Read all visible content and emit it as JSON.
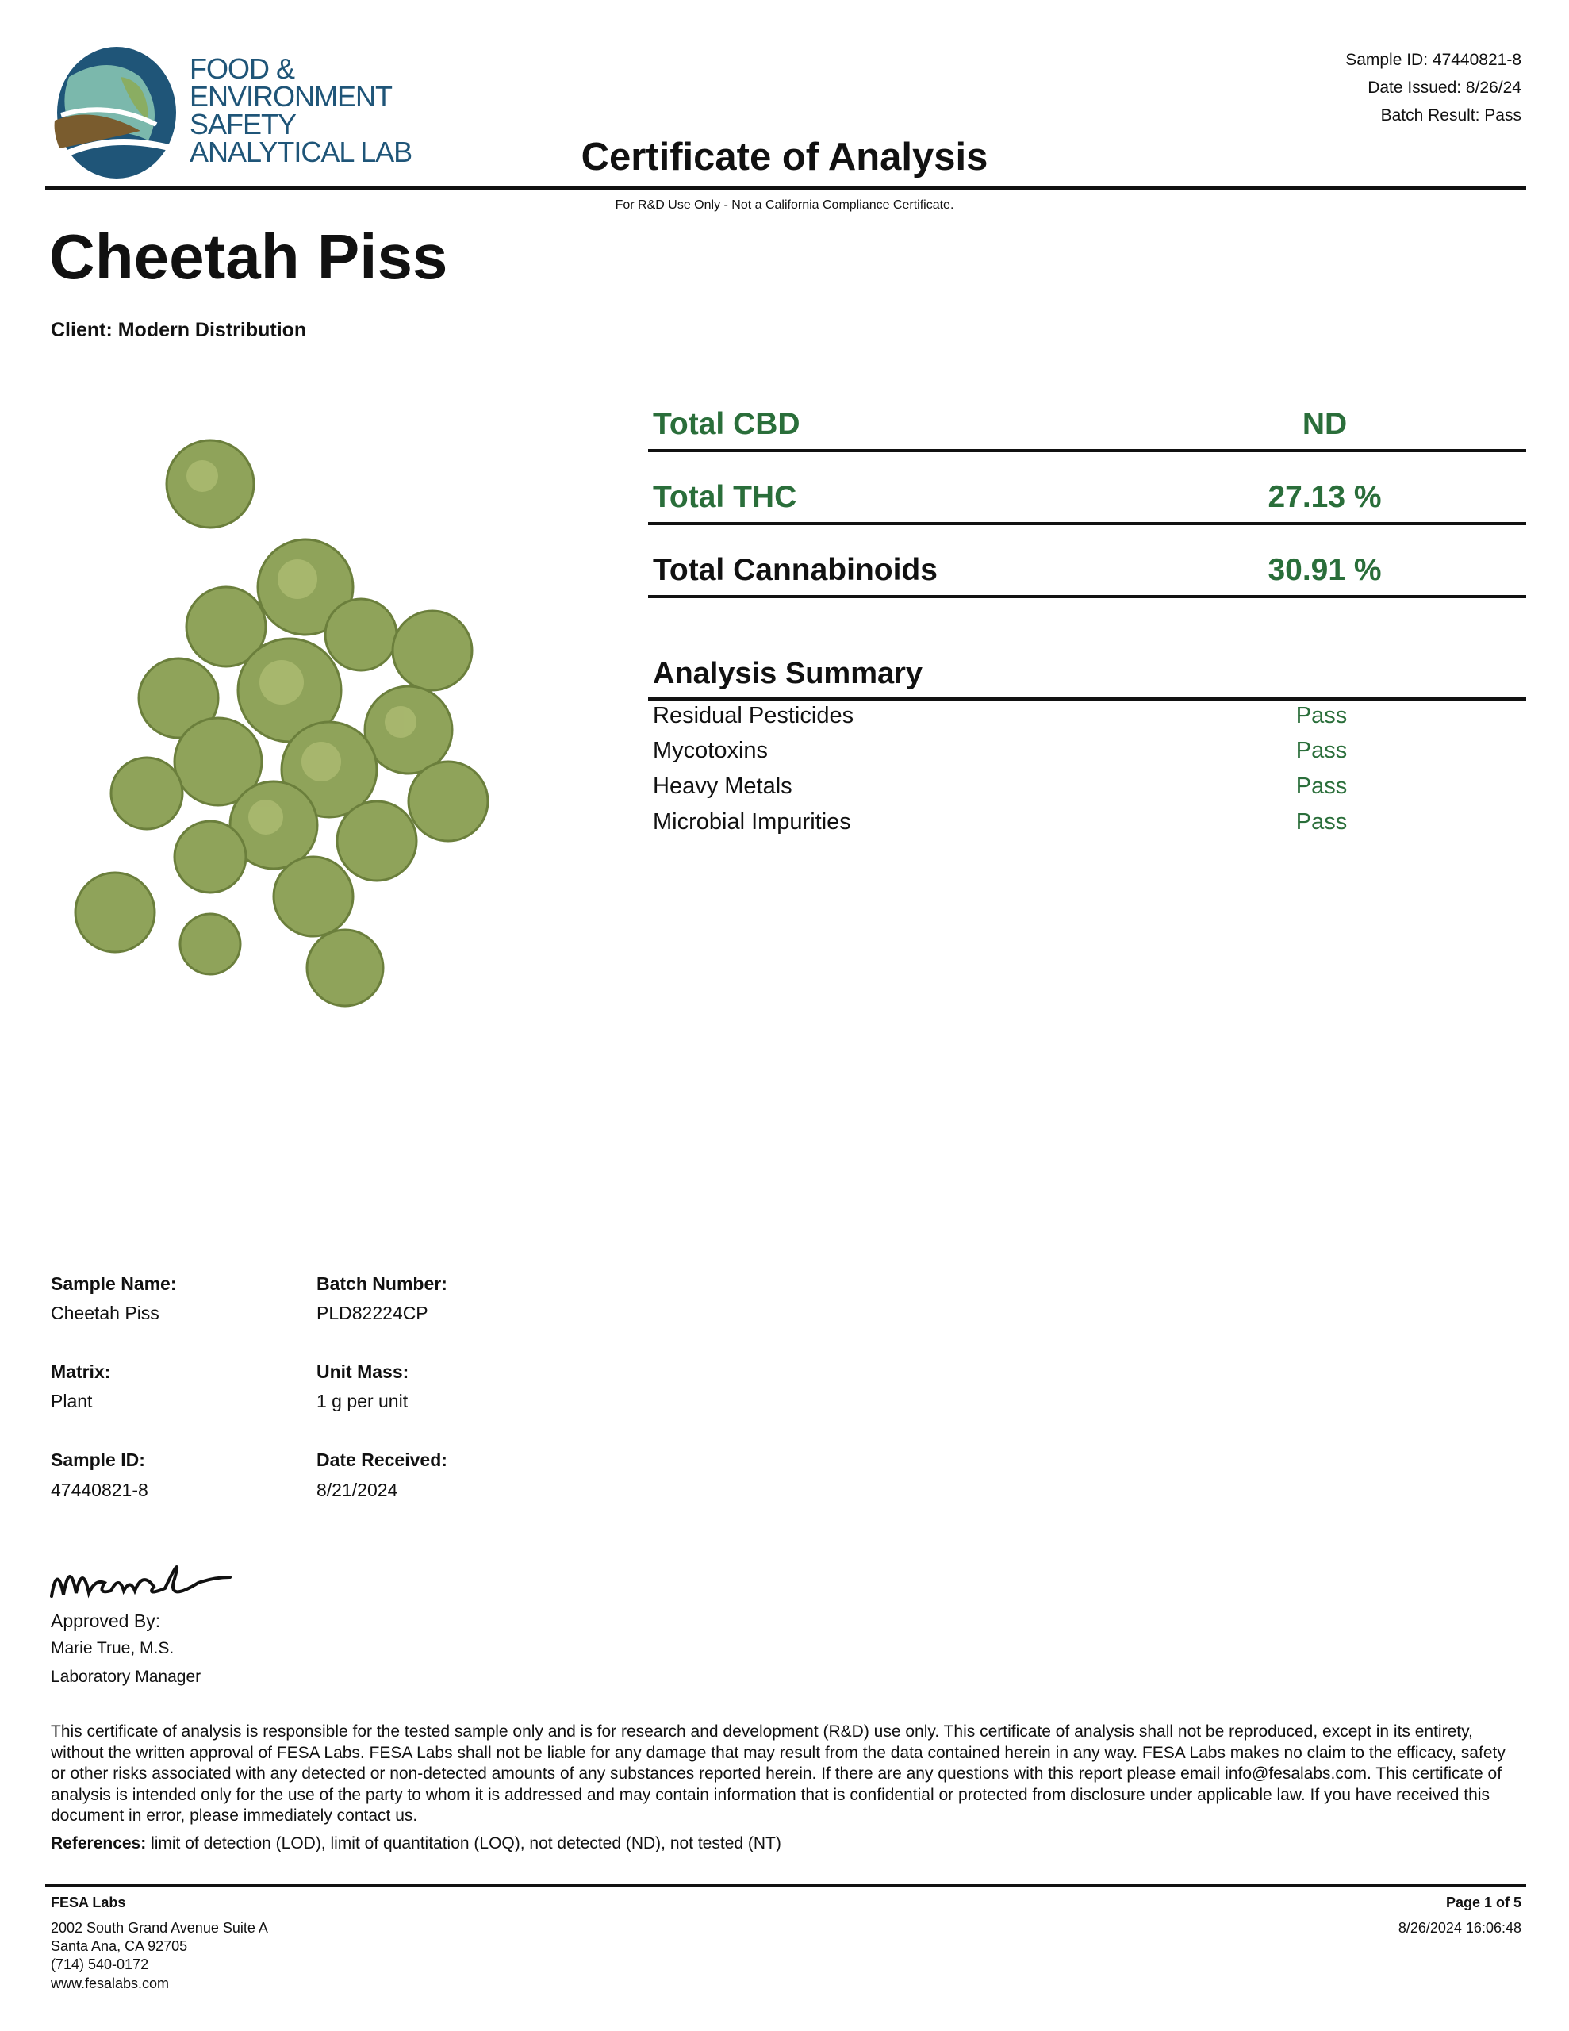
{
  "header": {
    "logo_text": [
      "FOOD &",
      "ENVIRONMENT",
      "SAFETY",
      "ANALYTICAL LAB"
    ],
    "sample_id": "Sample ID: 47440821-8",
    "date_issued": "Date Issued: 8/26/24",
    "batch_result": "Batch Result: Pass",
    "title": "Certificate of Analysis",
    "note": "For R&D Use Only - Not a California Compliance Certificate."
  },
  "product": {
    "name": "Cheetah Piss",
    "client": "Client: Modern Distribution"
  },
  "totals": [
    {
      "label": "Total CBD",
      "value": "ND"
    },
    {
      "label": "Total THC",
      "value": "27.13 %"
    },
    {
      "label": "Total Cannabinoids",
      "value": "30.91 %"
    }
  ],
  "summary": {
    "title": "Analysis Summary",
    "items": [
      {
        "label": "Residual Pesticides",
        "result": "Pass"
      },
      {
        "label": "Mycotoxins",
        "result": "Pass"
      },
      {
        "label": "Heavy Metals",
        "result": "Pass"
      },
      {
        "label": "Microbial Impurities",
        "result": "Pass"
      }
    ]
  },
  "info": [
    {
      "label": "Sample Name:",
      "value": "Cheetah Piss"
    },
    {
      "label": "Batch Number:",
      "value": "PLD82224CP"
    },
    {
      "label": "Matrix:",
      "value": "Plant"
    },
    {
      "label": "Unit Mass:",
      "value": "1 g per unit"
    },
    {
      "label": "Sample ID:",
      "value": "47440821-8"
    },
    {
      "label": "Date Received:",
      "value": "8/21/2024"
    }
  ],
  "approval": {
    "signature": "Maries",
    "approved_by": "Approved By:",
    "name": "Marie True, M.S.",
    "role": "Laboratory Manager"
  },
  "disclaimer": "This certificate of analysis is responsible for the tested sample only and is for research and development (R&D) use only. This certificate of analysis shall not be reproduced, except in its entirety, without the written approval of FESA Labs. FESA Labs shall not be liable for any damage that may result from the data contained herein in any way. FESA Labs makes no claim to the efficacy, safety or other risks associated with any detected or non-detected amounts of any substances reported herein. If there are any questions with this report please email info@fesalabs.com. This certificate of analysis is intended only for the use of the party to whom it is addressed and may contain information that is confidential or protected from disclosure under applicable law. If you have received this document in error, please immediately contact us.",
  "references": {
    "label": "References:",
    "text": " limit of detection (LOD), limit of quantitation (LOQ), not detected (ND), not tested (NT)"
  },
  "footer": {
    "company": "FESA Labs",
    "address": [
      "2002 South Grand Avenue Suite A",
      "Santa Ana, CA 92705",
      "(714) 540-0172",
      "www.fesalabs.com"
    ],
    "page": "Page 1 of 5",
    "timestamp": "8/26/2024 16:06:48"
  },
  "colors": {
    "accent_green": "#2a6e3a",
    "logo_blue": "#1f5578",
    "logo_teal": "#7bb8ac",
    "logo_olive": "#8aad62",
    "logo_brown": "#7a5c2e"
  }
}
